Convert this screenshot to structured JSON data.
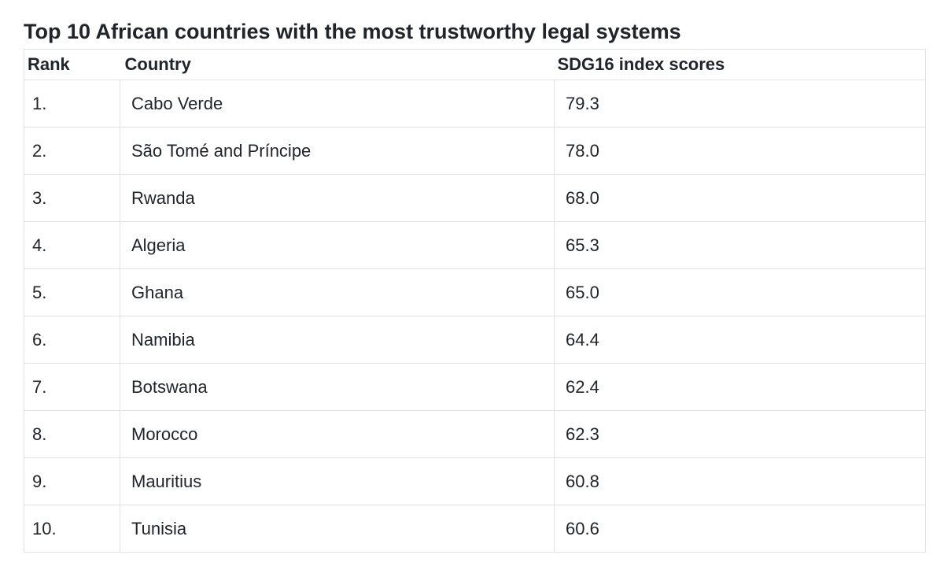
{
  "page": {
    "title": "Top 10 African countries with the most trustworthy legal systems"
  },
  "colors": {
    "text": "#212529",
    "border": "#dee2e6",
    "background": "#ffffff"
  },
  "table": {
    "headers": {
      "rank": "Rank",
      "country": "Country",
      "score": "SDG16 index scores"
    },
    "rows": [
      {
        "rank": "1.",
        "country": "Cabo Verde",
        "score": "79.3"
      },
      {
        "rank": "2.",
        "country": "São Tomé and Príncipe",
        "score": "78.0"
      },
      {
        "rank": "3.",
        "country": "Rwanda",
        "score": "68.0"
      },
      {
        "rank": "4.",
        "country": "Algeria",
        "score": "65.3"
      },
      {
        "rank": "5.",
        "country": "Ghana",
        "score": "65.0"
      },
      {
        "rank": "6.",
        "country": "Namibia",
        "score": "64.4"
      },
      {
        "rank": "7.",
        "country": "Botswana",
        "score": "62.4"
      },
      {
        "rank": "8.",
        "country": "Morocco",
        "score": "62.3"
      },
      {
        "rank": "9.",
        "country": "Mauritius",
        "score": "60.8"
      },
      {
        "rank": "10.",
        "country": "Tunisia",
        "score": "60.6"
      }
    ]
  },
  "chart_data": {
    "type": "table",
    "title": "Top 10 African countries with the most trustworthy legal systems",
    "columns": [
      "Rank",
      "Country",
      "SDG16 index scores"
    ],
    "categories": [
      "Cabo Verde",
      "São Tomé and Príncipe",
      "Rwanda",
      "Algeria",
      "Ghana",
      "Namibia",
      "Botswana",
      "Morocco",
      "Mauritius",
      "Tunisia"
    ],
    "values": [
      79.3,
      78.0,
      68.0,
      65.3,
      65.0,
      64.4,
      62.4,
      62.3,
      60.8,
      60.6
    ],
    "value_label": "SDG16 index scores"
  }
}
